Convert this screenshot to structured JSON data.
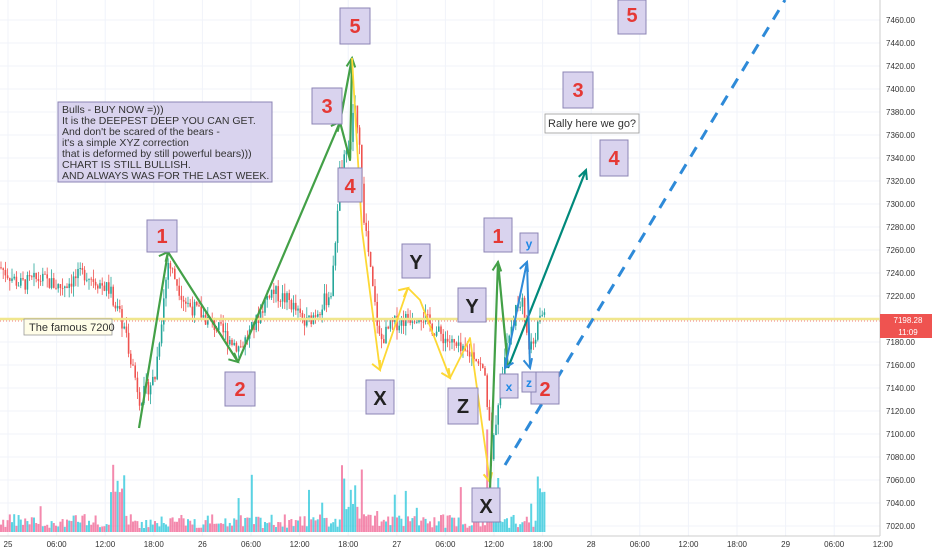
{
  "chart_data": {
    "type": "candlestick",
    "price_axis": {
      "ticks": [
        "7460.00",
        "7440.00",
        "7420.00",
        "7400.00",
        "7380.00",
        "7360.00",
        "7340.00",
        "7320.00",
        "7300.00",
        "7280.00",
        "7260.00",
        "7240.00",
        "7220.00",
        "7200.00",
        "7180.00",
        "7160.00",
        "7140.00",
        "7120.00",
        "7100.00",
        "7080.00",
        "7060.00",
        "7040.00",
        "7020.00"
      ],
      "ylim": [
        7016,
        7474
      ]
    },
    "time_axis": {
      "ticks": [
        "25",
        "06:00",
        "12:00",
        "18:00",
        "26",
        "06:00",
        "12:00",
        "18:00",
        "27",
        "06:00",
        "12:00",
        "18:00",
        "28",
        "06:00",
        "12:00",
        "18:00",
        "29",
        "06:00",
        "12:00"
      ]
    },
    "last_price": "7198.28",
    "countdown": "11:09",
    "horizontal_line": {
      "price": 7200,
      "label": "The famous 7200"
    },
    "annotation": {
      "lines": [
        "Bulls - BUY NOW =)))",
        "It is the DEEPEST DEEP YOU CAN GET.",
        "And don't be scared of the bears -",
        "it's a simple XYZ correction",
        "that is deformed by still powerful bears)))",
        "CHART IS STILL BULLISH.",
        "AND ALWAYS WAS FOR THE LAST WEEK."
      ]
    },
    "callout": "Rally here we go?",
    "wave_labels": [
      "1",
      "2",
      "3",
      "4",
      "5",
      "1",
      "2",
      "3",
      "4",
      "5"
    ],
    "pattern_labels": [
      "X",
      "Y",
      "X",
      "Y",
      "Z",
      "X"
    ],
    "small_labels": [
      "x",
      "y",
      "z"
    ],
    "colors": {
      "bull_candle": "#26a69a",
      "bear_candle": "#ef5350",
      "impulse_line": "#43a047",
      "correction_line": "#fdd835",
      "projection_line": "#00897b",
      "forecast_dashed": "#2e8ad8",
      "price_line": "#f0e68c",
      "volume_bull": "#26c6da",
      "volume_bear": "#f06292",
      "price_tag": "#ef5350"
    }
  }
}
